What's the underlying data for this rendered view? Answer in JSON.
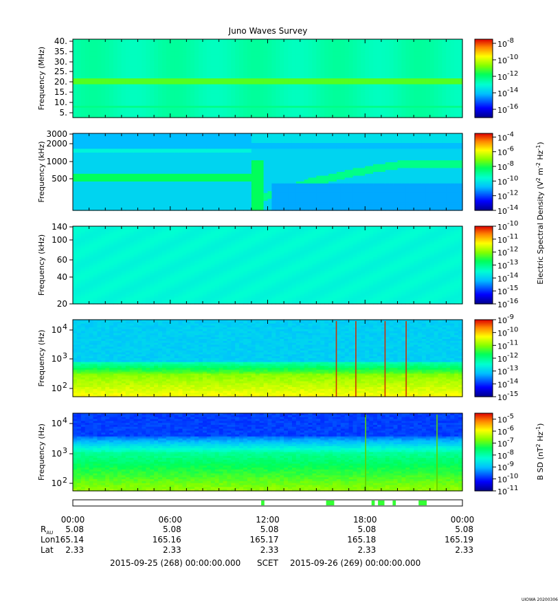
{
  "chart_data": {
    "type": "heatmap",
    "title": "Juno Waves Survey",
    "panels": [
      {
        "id": "p1",
        "ylabel": "Frequency (MHz)",
        "yticks": [
          "40.",
          "35.",
          "30.",
          "25.",
          "20.",
          "15.",
          "10.",
          "5."
        ],
        "ytick_values": [
          40,
          35,
          30,
          25,
          20,
          15,
          10,
          5
        ],
        "ylim": [
          3.5,
          41.5
        ],
        "yscale": "linear",
        "colorbar": {
          "exponents": [
            "-8",
            "-10",
            "-12",
            "-14",
            "-16"
          ],
          "range_exp": [
            -17,
            -7.5
          ]
        },
        "features": {
          "background_level_exp": -13.3,
          "band_MHz": 21.0,
          "band_level_exp": -11.8
        }
      },
      {
        "id": "p2",
        "ylabel": "Frequency (kHz)",
        "yticks": [
          "3000",
          "2000",
          "1000",
          "500"
        ],
        "ytick_values": [
          3000,
          2000,
          1000,
          500
        ],
        "ylim": [
          150,
          3000
        ],
        "yscale": "log",
        "colorbar": {
          "exponents": [
            "-4",
            "-6",
            "-8",
            "-10",
            "-12",
            "-14"
          ],
          "range_exp": [
            -14,
            -3.5
          ]
        },
        "features": {
          "background_level_exp": -11.3,
          "band_kHz": 530,
          "band_level_exp": -9.6,
          "event_hour": 11.0
        }
      },
      {
        "id": "p3",
        "ylabel": "Frequency (kHz)",
        "yticks": [
          "140",
          "100",
          "60",
          "40",
          "20"
        ],
        "ytick_values": [
          140,
          100,
          60,
          40,
          20
        ],
        "ylim": [
          20,
          140
        ],
        "yscale": "linear",
        "colorbar": {
          "exponents": [
            "-10",
            "-11",
            "-12",
            "-13",
            "-14",
            "-15",
            "-16"
          ],
          "range_exp": [
            -16,
            -10
          ]
        },
        "features": {
          "background_level_exp": -14.2
        }
      },
      {
        "id": "p4",
        "ylabel": "Frequency (Hz)",
        "yticks": [
          "10",
          "10",
          "10"
        ],
        "ytick_exponents": [
          "4",
          "3",
          "2"
        ],
        "ytick_values": [
          10000,
          1000,
          100
        ],
        "ylim": [
          50,
          20000
        ],
        "yscale": "log",
        "colorbar": {
          "exponents": [
            "-9",
            "-10",
            "-11",
            "-12",
            "-13",
            "-14",
            "-15"
          ],
          "range_exp": [
            -15,
            -9
          ]
        },
        "features": {
          "spike_hours": [
            16.2,
            17.4,
            19.2,
            20.5
          ]
        }
      },
      {
        "id": "p5",
        "ylabel": "Frequency (Hz)",
        "yticks": [
          "10",
          "10",
          "10"
        ],
        "ytick_exponents": [
          "4",
          "3",
          "2"
        ],
        "ytick_values": [
          10000,
          1000,
          100
        ],
        "ylim": [
          50,
          25000
        ],
        "yscale": "log",
        "colorbar": {
          "exponents": [
            "-5",
            "-6",
            "-7",
            "-8",
            "-9",
            "-10",
            "-11"
          ],
          "range_exp": [
            -11,
            -4.5
          ]
        },
        "features": {
          "spike_hours": [
            18.0,
            22.4
          ]
        }
      }
    ],
    "colorbar_labels": {
      "p1_p4_base": "10",
      "electric": "Electric Spectral Density (V",
      "electric_sup1": "2",
      "electric_mid": " m",
      "electric_sup2": "-2",
      "electric_mid2": " Hz",
      "electric_sup3": "-1",
      "electric_end": ")",
      "magnetic": "B SD (nT",
      "magnetic_sup1": "2",
      "magnetic_mid": " Hz",
      "magnetic_sup2": "-1",
      "magnetic_end": ")"
    },
    "mode_bar": {
      "segments_hours": [
        [
          11.6,
          11.8
        ],
        [
          15.6,
          16.1
        ],
        [
          18.4,
          18.6
        ],
        [
          18.8,
          19.2
        ],
        [
          19.7,
          19.9
        ],
        [
          21.3,
          21.8
        ]
      ],
      "color": "#33ff33"
    },
    "x_axis": {
      "hours": [
        0,
        6,
        12,
        18,
        24
      ],
      "tick_labels": [
        "00:00",
        "06:00",
        "12:00",
        "18:00",
        "00:00"
      ],
      "minor_hours": [
        1,
        2,
        3,
        4,
        5,
        7,
        8,
        9,
        10,
        11,
        13,
        14,
        15,
        16,
        17,
        19,
        20,
        21,
        22,
        23
      ]
    },
    "ephemeris": {
      "rows": [
        {
          "label": "R",
          "label_sub": "AU",
          "values": [
            "5.08",
            "5.08",
            "5.08",
            "5.08",
            "5.08"
          ]
        },
        {
          "label": "Lon",
          "label_sub": "",
          "values": [
            "165.14",
            "165.16",
            "165.17",
            "165.18",
            "165.19"
          ]
        },
        {
          "label": "Lat",
          "label_sub": "",
          "values": [
            "2.33",
            "2.33",
            "2.33",
            "2.33",
            "2.33"
          ]
        }
      ]
    },
    "footer": {
      "start": "2015-09-25 (268) 00:00:00.000",
      "frame": "SCET",
      "end": "2015-09-26 (269) 00:00:00.000",
      "stamp": "UIOWA 20200306"
    }
  }
}
